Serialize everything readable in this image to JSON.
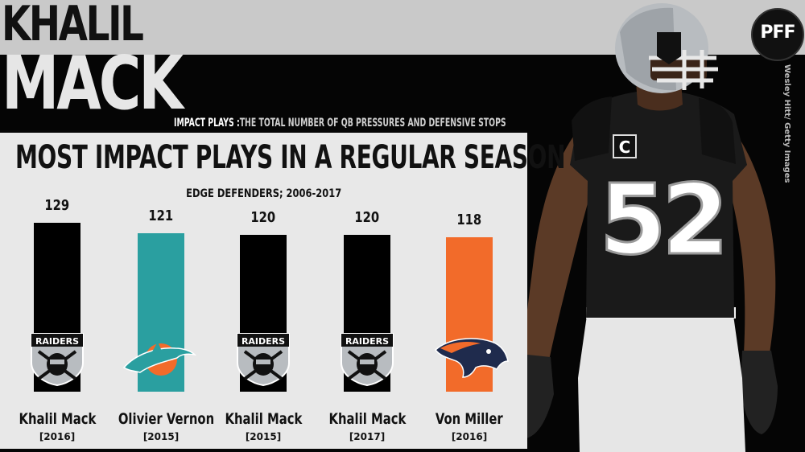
{
  "header": {
    "name_line1": "KHALIL",
    "name_line2": "MACK",
    "definition_key": "IMPACT PLAYS :",
    "definition_text": "THE TOTAL NUMBER OF QB PRESSURES AND DEFENSIVE STOPS"
  },
  "brand": {
    "logo_text": "PFF",
    "photo_credit": "Wesley Hitt/ Getty Images"
  },
  "player_photo": {
    "jersey_number": "52",
    "captain_patch": "C",
    "helmet_color": "#b8bcc0",
    "jersey_color": "#1a1a1a"
  },
  "colors": {
    "raiders": "#000000",
    "dolphins": "#2a9fa0",
    "broncos": "#f26b2a"
  },
  "chart_data": {
    "type": "bar",
    "title": "MOST IMPACT PLAYS IN A REGULAR SEASON",
    "subtitle": "EDGE DEFENDERS; 2006-2017",
    "xlabel": "",
    "ylabel": "",
    "ylim": [
      0,
      129
    ],
    "grid": false,
    "categories": [
      "Khalil Mack",
      "Olivier Vernon",
      "Khalil Mack",
      "Khalil Mack",
      "Von Miller"
    ],
    "years": [
      "[2016]",
      "[2015]",
      "[2015]",
      "[2017]",
      "[2016]"
    ],
    "values": [
      129,
      121,
      120,
      120,
      118
    ],
    "value_labels": [
      "129",
      "121",
      "120",
      "120",
      "118"
    ],
    "bar_colors": [
      "#000000",
      "#2a9fa0",
      "#000000",
      "#000000",
      "#f26b2a"
    ],
    "logos": [
      "raiders-shield-icon",
      "dolphins-logo-icon",
      "raiders-shield-icon",
      "raiders-shield-icon",
      "broncos-logo-icon"
    ],
    "logo_text": [
      "RAIDERS",
      "",
      "RAIDERS",
      "RAIDERS",
      ""
    ]
  }
}
